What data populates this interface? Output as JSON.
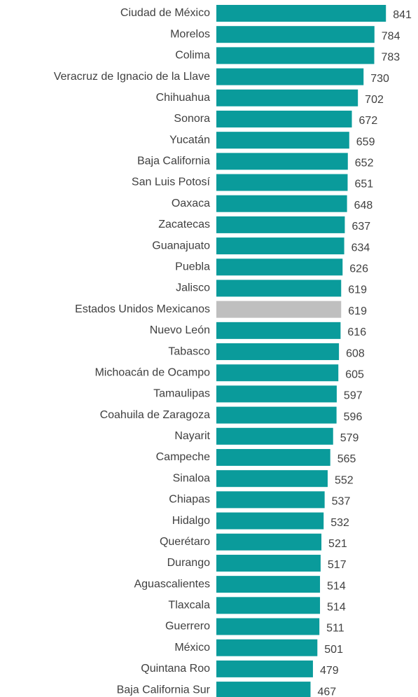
{
  "chart_data": {
    "type": "bar",
    "orientation": "horizontal",
    "categories": [
      "Ciudad de México",
      "Morelos",
      "Colima",
      "Veracruz de Ignacio de la Llave",
      "Chihuahua",
      "Sonora",
      "Yucatán",
      "Baja California",
      "San Luis Potosí",
      "Oaxaca",
      "Zacatecas",
      "Guanajuato",
      "Puebla",
      "Jalisco",
      "Estados Unidos Mexicanos",
      "Nuevo León",
      "Tabasco",
      "Michoacán de Ocampo",
      "Tamaulipas",
      "Coahuila de Zaragoza",
      "Nayarit",
      "Campeche",
      "Sinaloa",
      "Chiapas",
      "Hidalgo",
      "Querétaro",
      "Durango",
      "Aguascalientes",
      "Tlaxcala",
      "Guerrero",
      "México",
      "Quintana Roo",
      "Baja California Sur"
    ],
    "values": [
      841,
      784,
      783,
      730,
      702,
      672,
      659,
      652,
      651,
      648,
      637,
      634,
      626,
      619,
      619,
      616,
      608,
      605,
      597,
      596,
      579,
      565,
      552,
      537,
      532,
      521,
      517,
      514,
      514,
      511,
      501,
      479,
      467
    ],
    "colors": [
      "#0a9b9b",
      "#0a9b9b",
      "#0a9b9b",
      "#0a9b9b",
      "#0a9b9b",
      "#0a9b9b",
      "#0a9b9b",
      "#0a9b9b",
      "#0a9b9b",
      "#0a9b9b",
      "#0a9b9b",
      "#0a9b9b",
      "#0a9b9b",
      "#0a9b9b",
      "#bfbfbf",
      "#0a9b9b",
      "#0a9b9b",
      "#0a9b9b",
      "#0a9b9b",
      "#0a9b9b",
      "#0a9b9b",
      "#0a9b9b",
      "#0a9b9b",
      "#0a9b9b",
      "#0a9b9b",
      "#0a9b9b",
      "#0a9b9b",
      "#0a9b9b",
      "#0a9b9b",
      "#0a9b9b",
      "#0a9b9b",
      "#0a9b9b",
      "#0a9b9b"
    ],
    "xlim": [
      0,
      1000
    ]
  }
}
